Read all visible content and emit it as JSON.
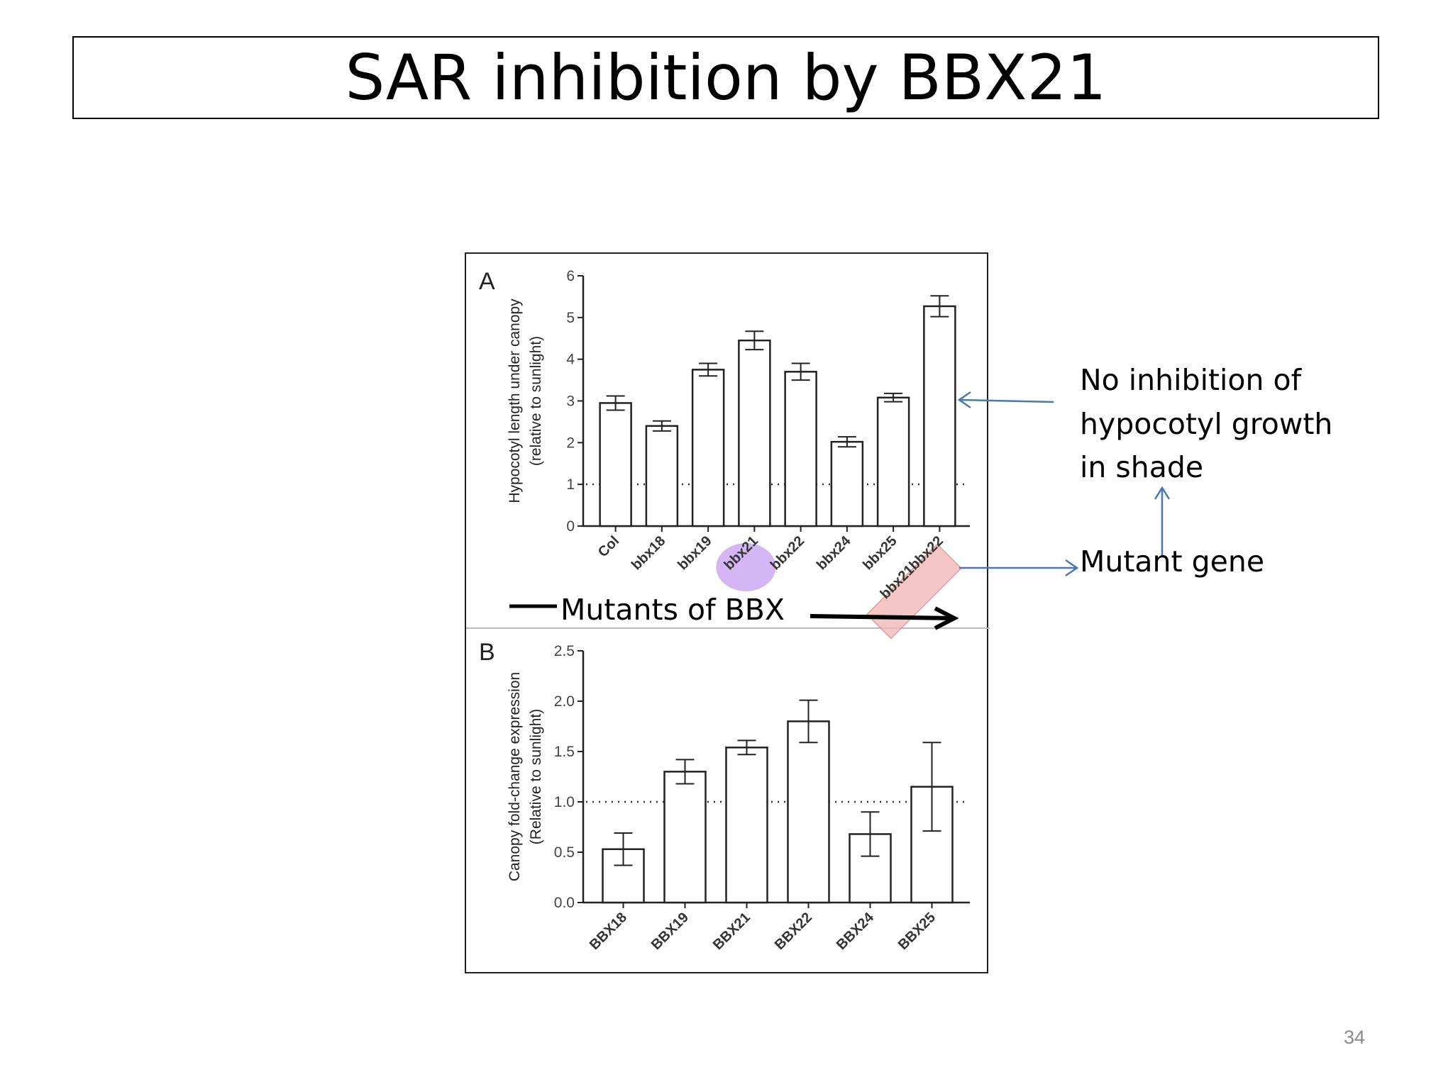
{
  "slide": {
    "title": "SAR inhibition by BBX21",
    "page_number": "34",
    "annotations": {
      "no_inhibition_lines": [
        "No inhibition of",
        "hypocotyl growth",
        "in shade"
      ],
      "mutant_gene": "Mutant gene",
      "mutants_of_bbx": "Mutants of BBX"
    },
    "colors": {
      "annotation_arrow": "#4a78b4",
      "highlight_bbx21": "#c79ef0",
      "highlight_double": "#f2b9b9",
      "bar_stroke": "#222222"
    }
  },
  "chart_data": [
    {
      "panel": "A",
      "type": "bar",
      "ylabel_lines": [
        "Hypocotyl length under canopy",
        "(relative to sunlight)"
      ],
      "categories": [
        "Col",
        "bbx18",
        "bbx19",
        "bbx21",
        "bbx22",
        "bbx24",
        "bbx25",
        "bbx21bbx22"
      ],
      "values": [
        2.95,
        2.4,
        3.75,
        4.45,
        3.7,
        2.02,
        3.08,
        5.27
      ],
      "errors": [
        0.17,
        0.12,
        0.15,
        0.22,
        0.2,
        0.12,
        0.1,
        0.25
      ],
      "ylim": [
        0,
        6
      ],
      "yticks": [
        "0",
        "1",
        "2",
        "3",
        "4",
        "5",
        "6"
      ],
      "reference_line": 1,
      "highlighted": [
        "bbx21",
        "bbx21bbx22"
      ]
    },
    {
      "panel": "B",
      "type": "bar",
      "ylabel_lines": [
        "Canopy fold-change expression",
        "(Relative to sunlight)"
      ],
      "categories": [
        "BBX18",
        "BBX19",
        "BBX21",
        "BBX22",
        "BBX24",
        "BBX25"
      ],
      "values": [
        0.53,
        1.3,
        1.54,
        1.8,
        0.68,
        1.15
      ],
      "errors": [
        0.16,
        0.12,
        0.07,
        0.21,
        0.22,
        0.44
      ],
      "ylim": [
        0,
        2.5
      ],
      "yticks": [
        "0.0",
        "0.5",
        "1.0",
        "1.5",
        "2.0",
        "2.5"
      ],
      "reference_line": 1.0
    }
  ]
}
